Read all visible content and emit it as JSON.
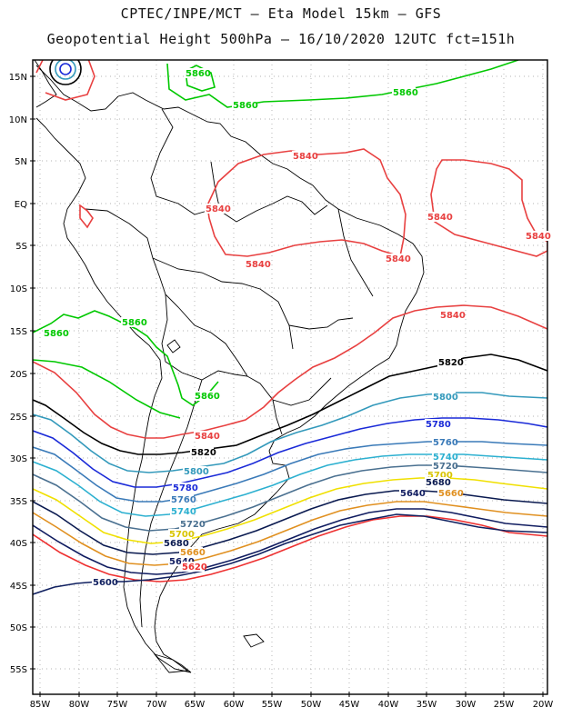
{
  "header": {
    "line1": "CPTEC/INPE/MCT –  Eta Model 15km – GFS",
    "line2": "Geopotential Height 500hPa – 16/10/2020 12UTC fct=151h"
  },
  "axes": {
    "lat_labels": [
      "15N",
      "10N",
      "5N",
      "EQ",
      "5S",
      "10S",
      "15S",
      "20S",
      "25S",
      "30S",
      "35S",
      "40S",
      "45S",
      "50S",
      "55S"
    ],
    "lon_labels": [
      "85W",
      "80W",
      "75W",
      "70W",
      "65W",
      "60W",
      "55W",
      "50W",
      "45W",
      "40W",
      "35W",
      "30W",
      "25W",
      "20W"
    ],
    "grid": "dotted"
  },
  "contours": [
    {
      "value": "5860",
      "color": "#00c800"
    },
    {
      "value": "5840",
      "color": "#e84040"
    },
    {
      "value": "5820",
      "color": "#000000"
    },
    {
      "value": "5800",
      "color": "#3399bb"
    },
    {
      "value": "5780",
      "color": "#1a2ad8"
    },
    {
      "value": "5760",
      "color": "#3a7ab8"
    },
    {
      "value": "5740",
      "color": "#2cb0d0"
    },
    {
      "value": "5720",
      "color": "#4a7090"
    },
    {
      "value": "5700",
      "color": "#f0e000"
    },
    {
      "value": "5680",
      "color": "#0a1a50"
    },
    {
      "value": "5660",
      "color": "#e09020"
    },
    {
      "value": "5640",
      "color": "#101c60"
    },
    {
      "value": "5620",
      "color": "#ee3030"
    },
    {
      "value": "5600",
      "color": "#102060"
    }
  ],
  "labels": [
    {
      "text": "5860",
      "color": "#00c800"
    },
    {
      "text": "5860",
      "color": "#00c800"
    },
    {
      "text": "5860",
      "color": "#00c800"
    },
    {
      "text": "5860",
      "color": "#00c800"
    },
    {
      "text": "5860",
      "color": "#00c800"
    },
    {
      "text": "5860",
      "color": "#00c800"
    },
    {
      "text": "5840",
      "color": "#e84040"
    },
    {
      "text": "5840",
      "color": "#e84040"
    },
    {
      "text": "5840",
      "color": "#e84040"
    },
    {
      "text": "5840",
      "color": "#e84040"
    },
    {
      "text": "5840",
      "color": "#e84040"
    },
    {
      "text": "5840",
      "color": "#e84040"
    },
    {
      "text": "5840",
      "color": "#e84040"
    },
    {
      "text": "5840",
      "color": "#e84040"
    },
    {
      "text": "5820",
      "color": "#000000"
    },
    {
      "text": "5820",
      "color": "#000000"
    },
    {
      "text": "5800",
      "color": "#3399bb"
    },
    {
      "text": "5800",
      "color": "#3399bb"
    },
    {
      "text": "5780",
      "color": "#1a2ad8"
    },
    {
      "text": "5780",
      "color": "#1a2ad8"
    },
    {
      "text": "5760",
      "color": "#3a7ab8"
    },
    {
      "text": "5760",
      "color": "#3a7ab8"
    },
    {
      "text": "5740",
      "color": "#2cb0d0"
    },
    {
      "text": "5740",
      "color": "#2cb0d0"
    },
    {
      "text": "5720",
      "color": "#4a7090"
    },
    {
      "text": "5720",
      "color": "#4a7090"
    },
    {
      "text": "5700",
      "color": "#d8c400"
    },
    {
      "text": "5700",
      "color": "#d8c400"
    },
    {
      "text": "5680",
      "color": "#0a1a50"
    },
    {
      "text": "5680",
      "color": "#0a1a50"
    },
    {
      "text": "5660",
      "color": "#e09020"
    },
    {
      "text": "5660",
      "color": "#e09020"
    },
    {
      "text": "5640",
      "color": "#101c60"
    },
    {
      "text": "5640",
      "color": "#101c60"
    },
    {
      "text": "5620",
      "color": "#ee3030"
    },
    {
      "text": "5600",
      "color": "#102060"
    }
  ]
}
